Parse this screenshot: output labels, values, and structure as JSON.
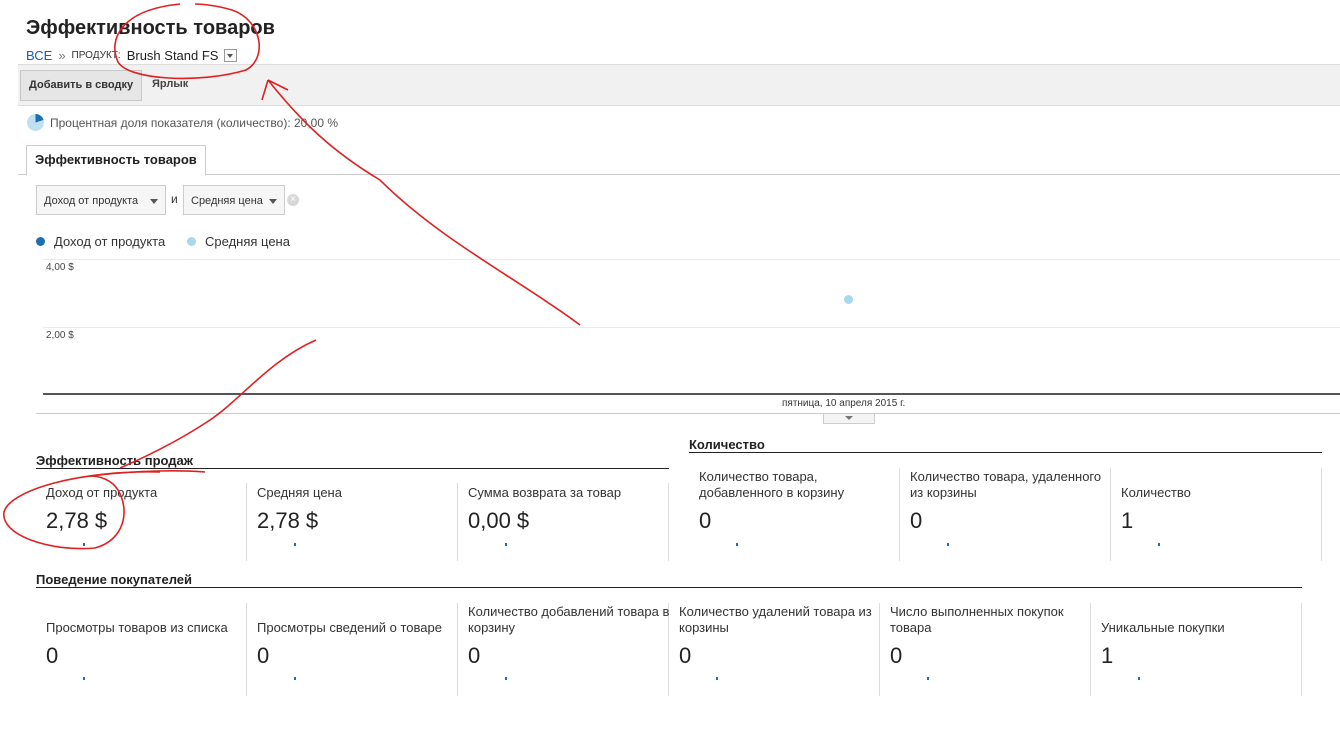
{
  "page_title": "Эффективность товаров",
  "breadcrumb": {
    "all": "ВСЕ",
    "separator": "»",
    "dimension": "ПРОДУКТ:",
    "value": "Brush Stand FS"
  },
  "toolbar": {
    "add_to_dashboard": "Добавить в сводку",
    "shortcut": "Ярлык"
  },
  "percent_share": "Процентная доля показателя (количество): 20,00 %",
  "tab": "Эффективность товаров",
  "metric_selectors": {
    "primary": "Доход от продукта",
    "conjunction": "и",
    "secondary": "Средняя цена"
  },
  "chart_data": {
    "type": "line",
    "x": [
      "пятница, 10 апреля 2015 г."
    ],
    "series": [
      {
        "name": "Доход от продукта",
        "color": "#1b70b0",
        "values": [
          2.78
        ]
      },
      {
        "name": "Средняя цена",
        "color": "#a8d8ee",
        "values": [
          2.78
        ]
      }
    ],
    "y_ticks": [
      "4,00 $",
      "2,00 $"
    ],
    "ylim": [
      0,
      4
    ],
    "grid": true
  },
  "sales_section": {
    "title": "Эффективность продаж",
    "cards": [
      {
        "label": "Доход от продукта",
        "value": "2,78 $"
      },
      {
        "label": "Средняя цена",
        "value": "2,78 $"
      },
      {
        "label": "Сумма возврата за товар",
        "value": "0,00 $"
      }
    ]
  },
  "quantity_section": {
    "title": "Количество",
    "cards": [
      {
        "label": "Количество товара, добавленного в корзину",
        "value": "0"
      },
      {
        "label": "Количество товара, удаленного из корзины",
        "value": "0"
      },
      {
        "label": "Количество",
        "value": "1"
      }
    ]
  },
  "behavior_section": {
    "title": "Поведение покупателей",
    "cards": [
      {
        "label": "Просмотры товаров из списка",
        "value": "0"
      },
      {
        "label": "Просмотры сведений о товаре",
        "value": "0"
      },
      {
        "label": "Количество добавлений товара в корзину",
        "value": "0"
      },
      {
        "label": "Количество удалений товара из корзины",
        "value": "0"
      },
      {
        "label": "Число выполненных покупок товара",
        "value": "0"
      },
      {
        "label": "Уникальные покупки",
        "value": "1"
      }
    ]
  }
}
